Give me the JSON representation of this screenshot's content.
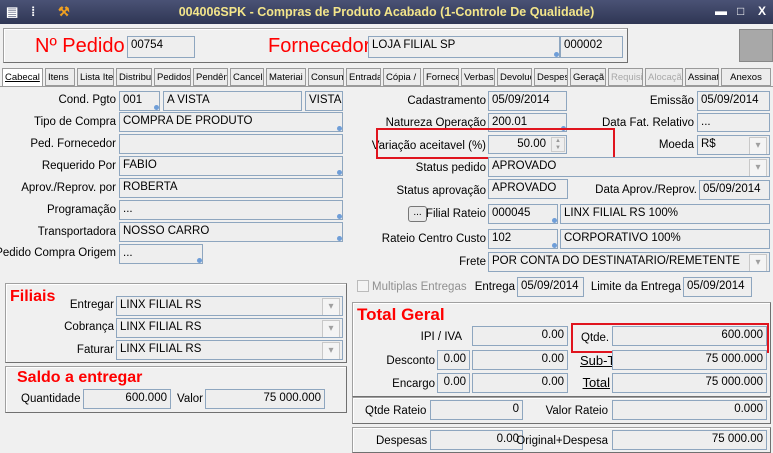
{
  "window": {
    "title": "004006SPK - Compras de Produto Acabado (1-Controle De Qualidade)",
    "icons": [
      "menu-icon",
      "traffic-light-icon",
      "tools-icon"
    ],
    "controls": [
      "minimize",
      "maximize",
      "close"
    ]
  },
  "header": {
    "pedido_label": "Nº Pedido",
    "pedido_value": "00754",
    "fornecedor_label": "Fornecedor",
    "fornecedor_name": "LOJA FILIAL SP",
    "fornecedor_code": "000002"
  },
  "tabs": [
    {
      "label": "Cabecal",
      "active": true
    },
    {
      "label": "Itens"
    },
    {
      "label": "Lista Ite"
    },
    {
      "label": "Distribui"
    },
    {
      "label": "Pedidos"
    },
    {
      "label": "Pendên"
    },
    {
      "label": "Cancela"
    },
    {
      "label": "Materiai"
    },
    {
      "label": "Consum"
    },
    {
      "label": "Entrada"
    },
    {
      "label": "Cópia /"
    },
    {
      "label": "Fornece"
    },
    {
      "label": "Verbas"
    },
    {
      "label": "Devoluç"
    },
    {
      "label": "Despes"
    },
    {
      "label": "Geraçã"
    },
    {
      "label": "Requisiç",
      "disabled": true
    },
    {
      "label": "Alocaçã",
      "disabled": true
    },
    {
      "label": "Assinatu"
    },
    {
      "label": "Anexos"
    }
  ],
  "left": {
    "cond_pgto": {
      "label": "Cond. Pgto",
      "code": "001",
      "desc": "A VISTA",
      "extra": "VISTA"
    },
    "tipo_compra": {
      "label": "Tipo de Compra",
      "value": "COMPRA DE PRODUTO"
    },
    "ped_fornecedor": {
      "label": "Ped. Fornecedor",
      "value": ""
    },
    "requerido_por": {
      "label": "Requerido Por",
      "value": "FABIO"
    },
    "aprov_reprov_por": {
      "label": "Aprov./Reprov. por",
      "value": "ROBERTA"
    },
    "programacao": {
      "label": "Programação",
      "value": "..."
    },
    "transportadora": {
      "label": "Transportadora",
      "value": "NOSSO CARRO"
    },
    "pedido_origem": {
      "label": "Pedido Compra Origem",
      "value": "..."
    }
  },
  "right": {
    "cadastramento": {
      "label": "Cadastramento",
      "value": "05/09/2014"
    },
    "emissao": {
      "label": "Emissão",
      "value": "05/09/2014"
    },
    "natureza": {
      "label": "Natureza Operação",
      "value": "200.01"
    },
    "data_fat": {
      "label": "Data Fat. Relativo",
      "value": "..."
    },
    "variacao": {
      "label": "Variação aceitavel (%)",
      "value": "50.00"
    },
    "moeda": {
      "label": "Moeda",
      "value": "R$"
    },
    "status_pedido": {
      "label": "Status pedido",
      "value": "APROVADO"
    },
    "status_aprovacao": {
      "label": "Status aprovação",
      "value": "APROVADO"
    },
    "data_aprov": {
      "label": "Data Aprov./Reprov.",
      "value": "05/09/2014"
    },
    "filial_rateio": {
      "button": "...",
      "label": "Filial Rateio",
      "code": "000045",
      "desc": "LINX FILIAL RS 100%"
    },
    "rateio_cc": {
      "label": "Rateio Centro Custo",
      "code": "102",
      "desc": "CORPORATIVO 100%"
    },
    "frete": {
      "label": "Frete",
      "value": "POR CONTA DO DESTINATARIO/REMETENTE"
    },
    "multiplas": {
      "label": "Multiplas Entregas",
      "checked": false
    },
    "entrega": {
      "label": "Entrega",
      "value": "05/09/2014"
    },
    "limite": {
      "label": "Limite da Entrega",
      "value": "05/09/2014"
    }
  },
  "filiais": {
    "title": "Filiais",
    "entregar": {
      "label": "Entregar",
      "value": "LINX FILIAL RS"
    },
    "cobranca": {
      "label": "Cobrança",
      "value": "LINX FILIAL RS"
    },
    "faturar": {
      "label": "Faturar",
      "value": "LINX FILIAL RS"
    }
  },
  "saldo": {
    "title": "Saldo a entregar",
    "quantidade_label": "Quantidade",
    "quantidade": "600.000",
    "valor_label": "Valor",
    "valor": "75 000.000"
  },
  "total": {
    "title": "Total Geral",
    "ipi_label": "IPI / IVA",
    "ipi": "0.00",
    "qtde_label": "Qtde. Total",
    "qtde": "600.000",
    "desconto_label": "Desconto",
    "desconto_pct": "0.00",
    "desconto": "0.00",
    "subtotal_label": "Sub-Total",
    "subtotal": "75 000.000",
    "encargo_label": "Encargo",
    "encargo_pct": "0.00",
    "encargo": "0.00",
    "total_label": "Total",
    "total": "75 000.000"
  },
  "rateio": {
    "qtde_label": "Qtde Rateio",
    "qtde": "0",
    "valor_label": "Valor Rateio",
    "valor": "0.000"
  },
  "despesas": {
    "label": "Despesas",
    "value": "0.00",
    "orig_label": "Original+Despesa",
    "orig": "75 000.00"
  },
  "highlight_color": "#e0141e"
}
